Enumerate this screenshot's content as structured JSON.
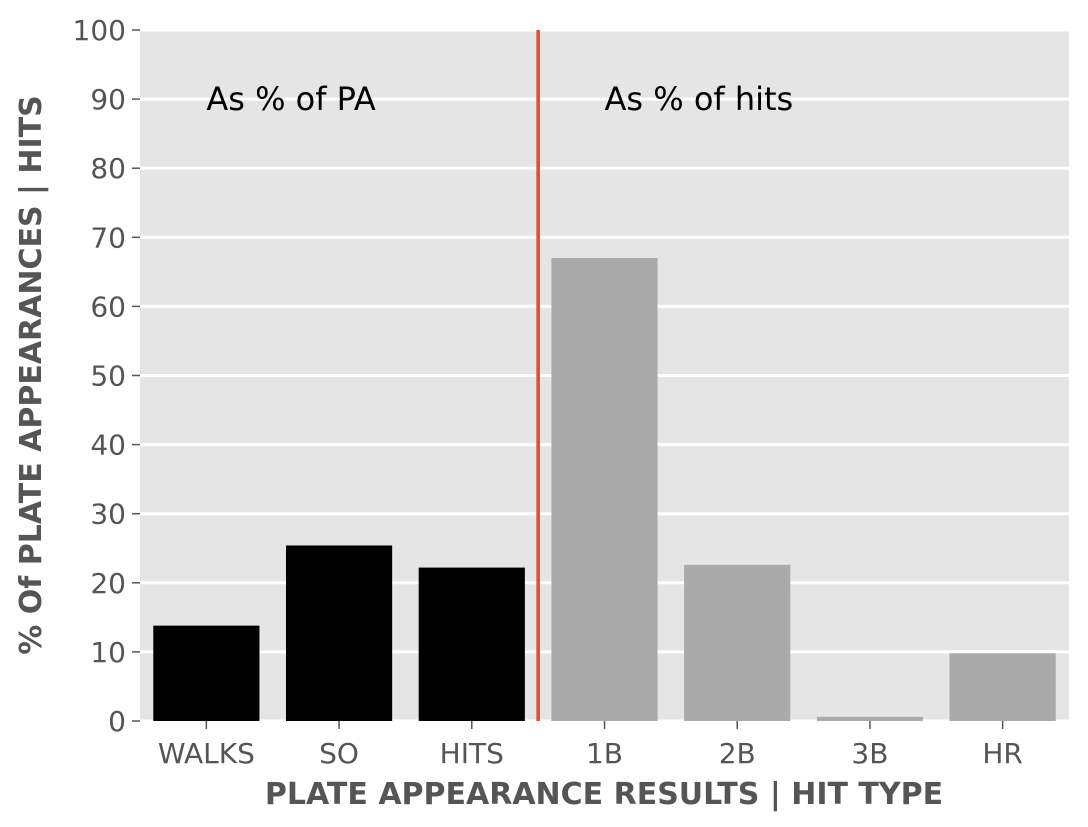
{
  "chart_data": {
    "type": "bar",
    "categories": [
      "WALKS",
      "SO",
      "HITS",
      "1B",
      "2B",
      "3B",
      "HR"
    ],
    "values": [
      13.8,
      25.4,
      22.2,
      67.0,
      22.6,
      0.6,
      9.8
    ],
    "bar_colors": [
      "#000000",
      "#000000",
      "#000000",
      "#aaaaaa",
      "#aaaaaa",
      "#aaaaaa",
      "#aaaaaa"
    ],
    "xlabel": "PLATE APPEARANCE RESULTS | HIT TYPE",
    "ylabel": "% Of PLATE APPEARANCES | HITS",
    "ylim": [
      0,
      100
    ],
    "yticks": [
      0,
      10,
      20,
      30,
      40,
      50,
      60,
      70,
      80,
      90,
      100
    ],
    "grid": true,
    "background": "#e5e5e5",
    "divider": {
      "after_category_index": 2,
      "color": "#e24a33"
    },
    "annotations": [
      {
        "text": "As % of PA",
        "x_category": 0.5,
        "y": 90
      },
      {
        "text": "As % of hits",
        "x_category": 3.5,
        "y": 90
      }
    ]
  }
}
